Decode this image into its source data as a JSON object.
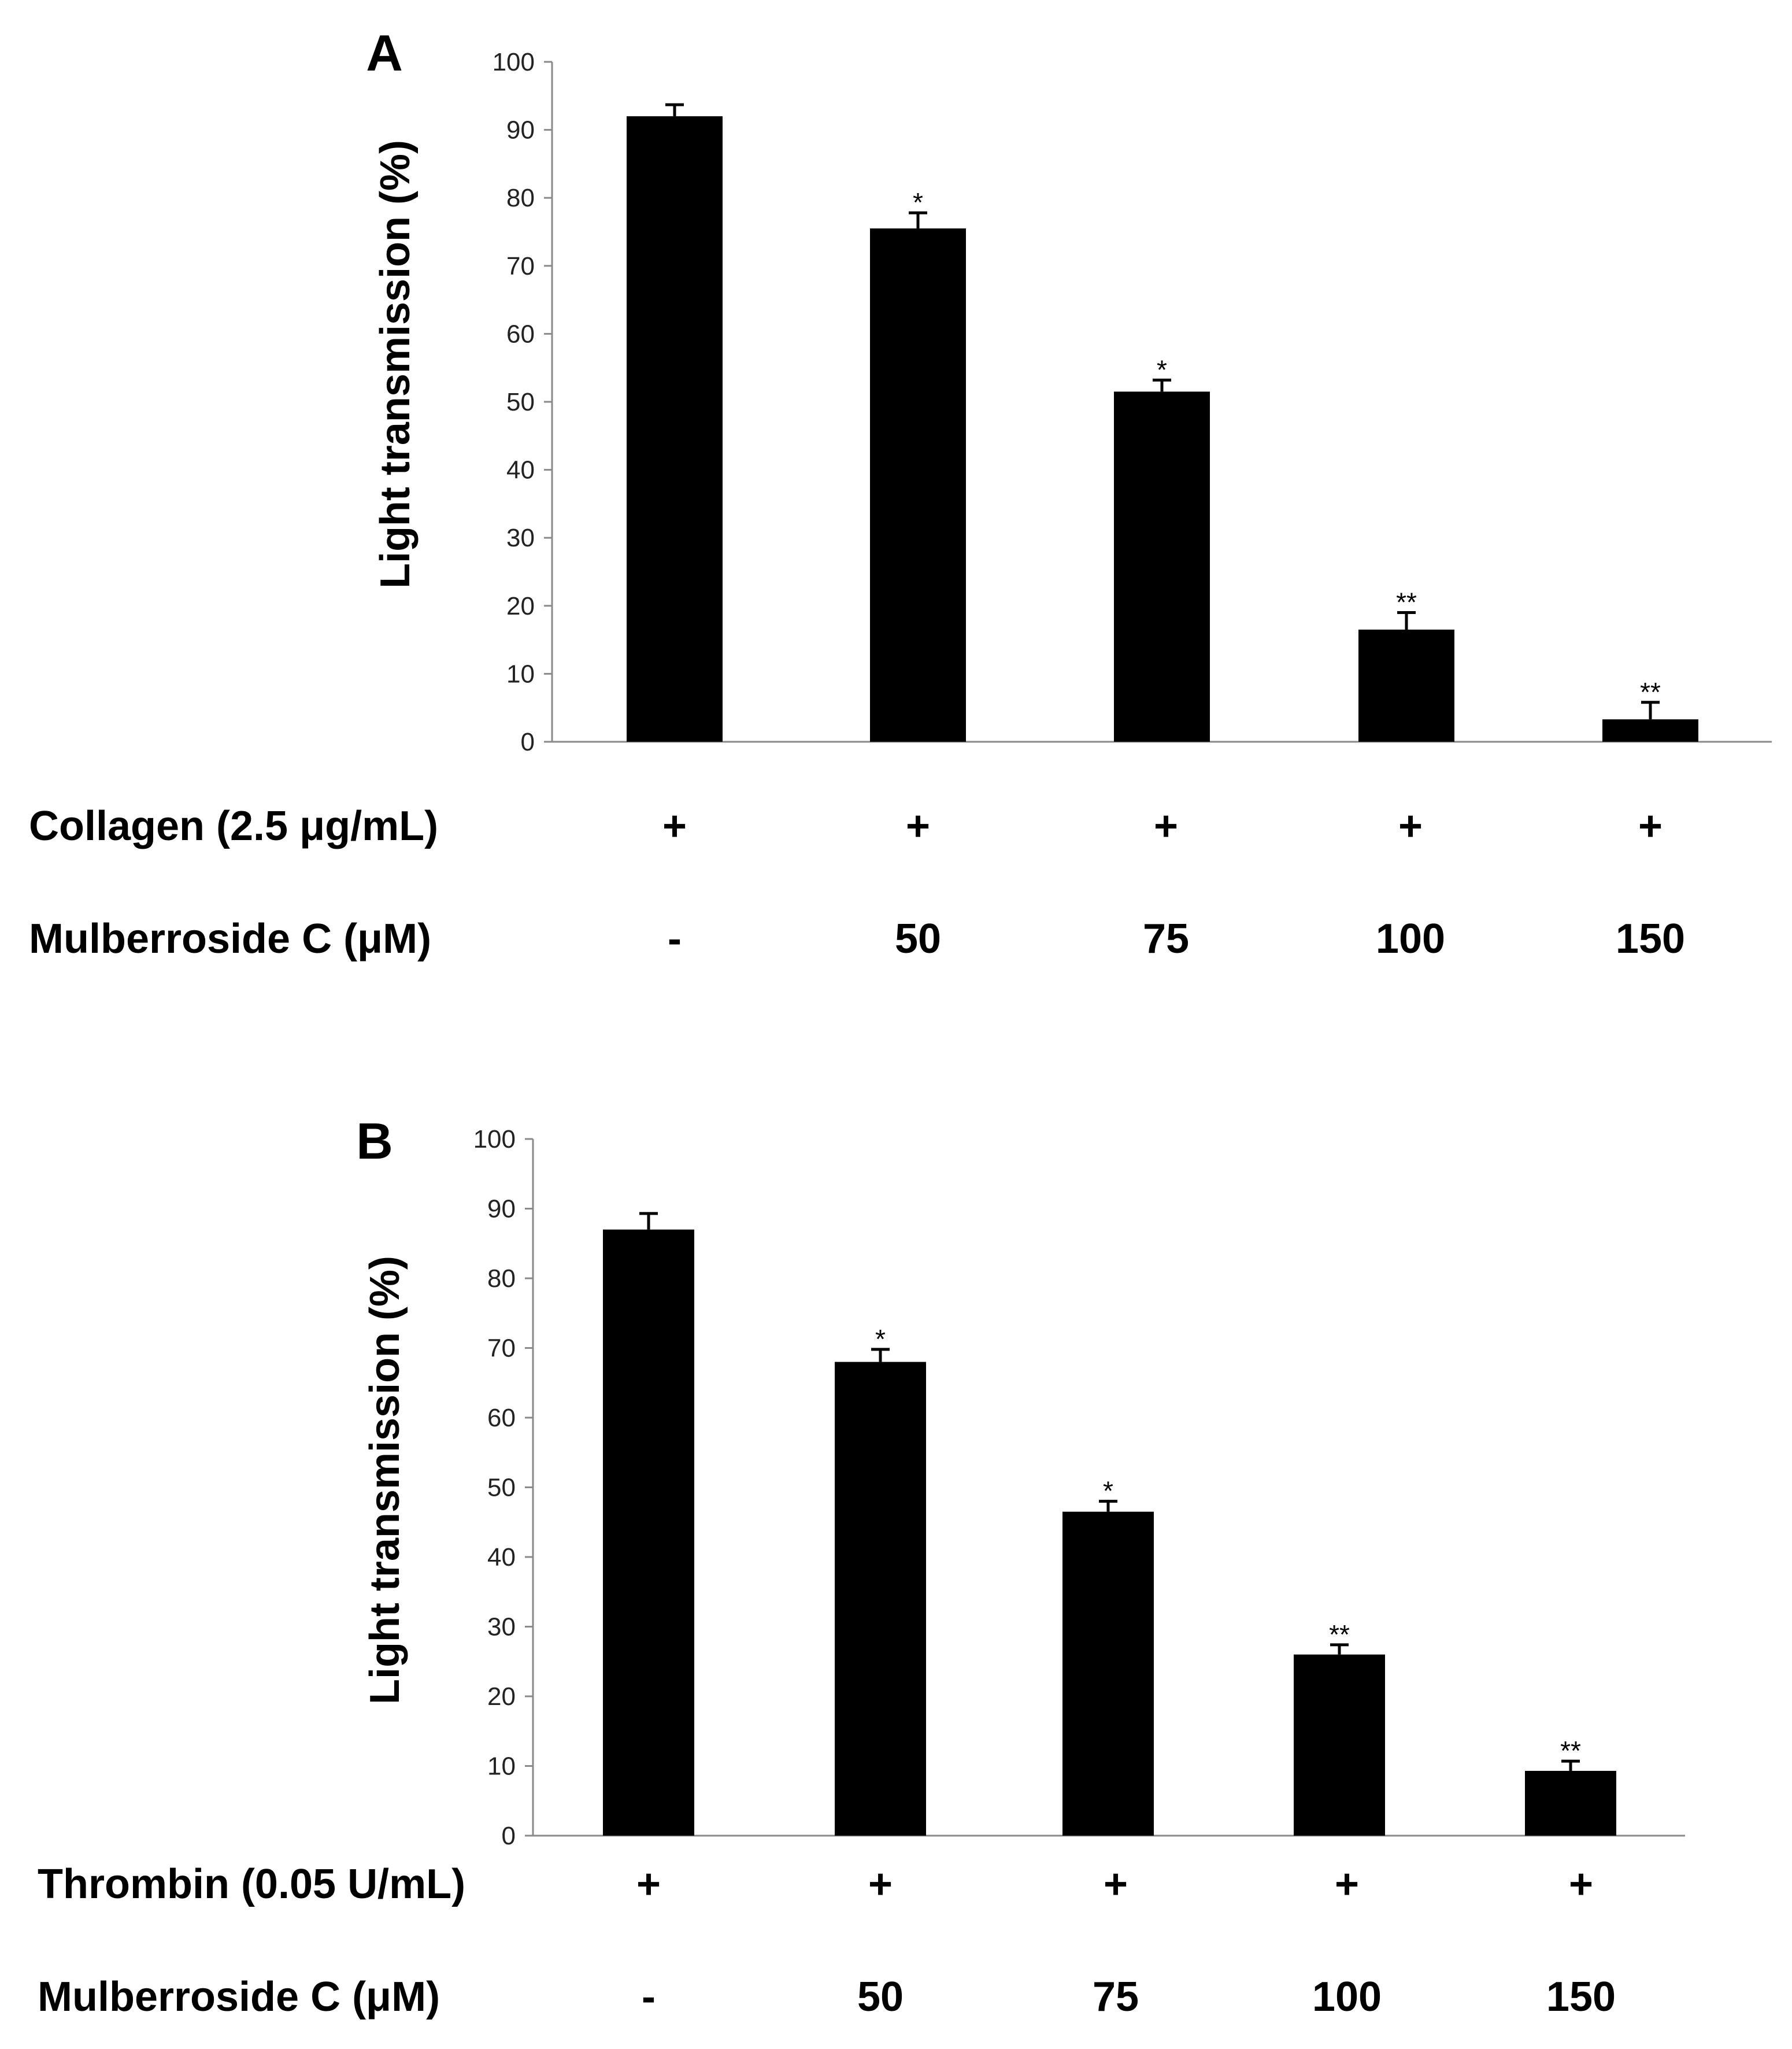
{
  "chart_data": [
    {
      "type": "bar",
      "panel": "A",
      "ylabel": "Light transmission (%)",
      "ylim": [
        0,
        100
      ],
      "yticks": [
        0,
        10,
        20,
        30,
        40,
        50,
        60,
        70,
        80,
        90,
        100
      ],
      "categories": [
        "-",
        "50",
        "75",
        "100",
        "150"
      ],
      "values": [
        92,
        75.5,
        51.5,
        16.5,
        3.3
      ],
      "errors": [
        1.7,
        2.3,
        1.7,
        2.5,
        2.5
      ],
      "significance": [
        "",
        "*",
        "*",
        "**",
        "**"
      ],
      "bar_color": "#000000",
      "conditions": [
        {
          "label": "Collagen (2.5 μg/mL)",
          "values": [
            "+",
            "+",
            "+",
            "+",
            "+"
          ]
        },
        {
          "label": "Mulberroside C (μM)",
          "values": [
            "-",
            "50",
            "75",
            "100",
            "150"
          ]
        }
      ]
    },
    {
      "type": "bar",
      "panel": "B",
      "ylabel": "Light transmission (%)",
      "ylim": [
        0,
        100
      ],
      "yticks": [
        0,
        10,
        20,
        30,
        40,
        50,
        60,
        70,
        80,
        90,
        100
      ],
      "categories": [
        "-",
        "50",
        "75",
        "100",
        "150"
      ],
      "values": [
        87,
        68,
        46.5,
        26,
        9.3
      ],
      "errors": [
        2.3,
        1.8,
        1.5,
        1.4,
        1.4
      ],
      "significance": [
        "",
        "*",
        "*",
        "**",
        "**"
      ],
      "bar_color": "#000000",
      "conditions": [
        {
          "label": "Thrombin (0.05 U/mL)",
          "values": [
            "+",
            "+",
            "+",
            "+",
            "+"
          ]
        },
        {
          "label": "Mulberroside C (μM)",
          "values": [
            "-",
            "50",
            "75",
            "100",
            "150"
          ]
        }
      ]
    }
  ]
}
